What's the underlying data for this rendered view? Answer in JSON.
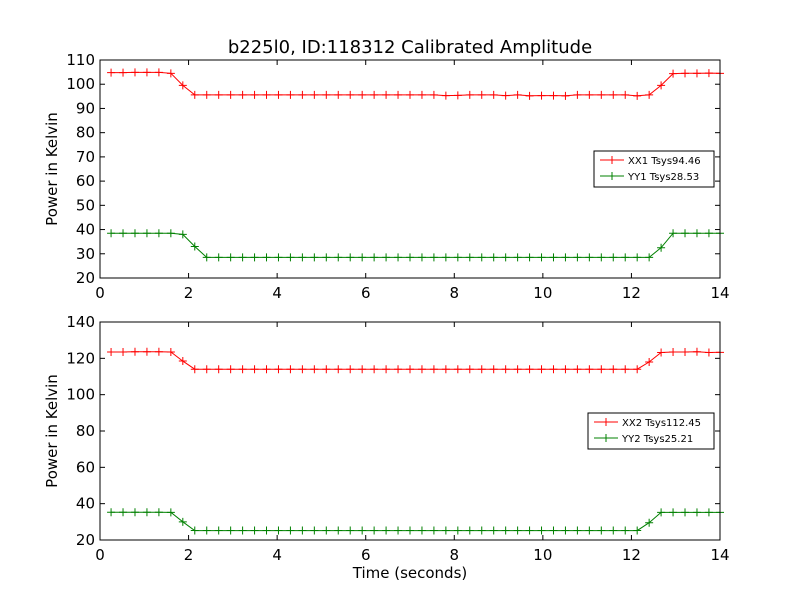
{
  "figure": {
    "title": "b225l0, ID:118312 Calibrated Amplitude",
    "xlabel": "Time (seconds)"
  },
  "chart_data": [
    {
      "type": "line",
      "title": "b225l0, ID:118312 Calibrated Amplitude",
      "xlabel": "",
      "ylabel": "Power in Kelvin",
      "xlim": [
        0,
        14
      ],
      "ylim": [
        20,
        110
      ],
      "xticks": [
        0,
        2,
        4,
        6,
        8,
        10,
        12,
        14
      ],
      "yticks": [
        20,
        30,
        40,
        50,
        60,
        70,
        80,
        90,
        100,
        110
      ],
      "legend_position": "center-right",
      "grid": false,
      "x": [
        0.25,
        0.52,
        0.79,
        1.06,
        1.33,
        1.6,
        1.87,
        2.14,
        2.41,
        2.68,
        2.95,
        3.22,
        3.49,
        3.76,
        4.03,
        4.3,
        4.57,
        4.84,
        5.11,
        5.38,
        5.65,
        5.92,
        6.19,
        6.46,
        6.73,
        7.0,
        7.27,
        7.54,
        7.81,
        8.08,
        8.35,
        8.62,
        8.89,
        9.16,
        9.43,
        9.7,
        9.97,
        10.24,
        10.51,
        10.78,
        11.05,
        11.32,
        11.59,
        11.86,
        12.13,
        12.4,
        12.67,
        12.94,
        13.21,
        13.48,
        13.75,
        14.0
      ],
      "series": [
        {
          "name": "XX1 Tsys94.46",
          "color": "#ff0000",
          "values": [
            104.8,
            104.8,
            104.9,
            104.9,
            104.9,
            104.5,
            99.5,
            95.6,
            95.6,
            95.6,
            95.6,
            95.6,
            95.6,
            95.6,
            95.6,
            95.6,
            95.6,
            95.6,
            95.6,
            95.6,
            95.6,
            95.6,
            95.6,
            95.6,
            95.6,
            95.6,
            95.6,
            95.6,
            95.3,
            95.4,
            95.6,
            95.6,
            95.6,
            95.3,
            95.6,
            95.2,
            95.3,
            95.3,
            95.2,
            95.6,
            95.6,
            95.6,
            95.6,
            95.6,
            95.2,
            95.6,
            99.5,
            104.4,
            104.5,
            104.5,
            104.6,
            104.5
          ]
        },
        {
          "name": "YY1 Tsys28.53",
          "color": "#008000",
          "values": [
            38.5,
            38.5,
            38.5,
            38.5,
            38.5,
            38.5,
            38.0,
            33.0,
            28.5,
            28.5,
            28.5,
            28.5,
            28.5,
            28.5,
            28.5,
            28.5,
            28.5,
            28.5,
            28.5,
            28.5,
            28.5,
            28.5,
            28.5,
            28.5,
            28.5,
            28.5,
            28.5,
            28.5,
            28.5,
            28.5,
            28.5,
            28.5,
            28.5,
            28.5,
            28.5,
            28.5,
            28.5,
            28.5,
            28.5,
            28.5,
            28.5,
            28.5,
            28.5,
            28.5,
            28.5,
            28.5,
            32.5,
            38.5,
            38.5,
            38.5,
            38.5,
            38.5
          ]
        }
      ]
    },
    {
      "type": "line",
      "title": "",
      "xlabel": "Time (seconds)",
      "ylabel": "Power in Kelvin",
      "xlim": [
        0,
        14
      ],
      "ylim": [
        20,
        140
      ],
      "xticks": [
        0,
        2,
        4,
        6,
        8,
        10,
        12,
        14
      ],
      "yticks": [
        20,
        40,
        60,
        80,
        100,
        120,
        140
      ],
      "legend_position": "center-right",
      "grid": false,
      "x": [
        0.25,
        0.52,
        0.79,
        1.06,
        1.33,
        1.6,
        1.87,
        2.14,
        2.41,
        2.68,
        2.95,
        3.22,
        3.49,
        3.76,
        4.03,
        4.3,
        4.57,
        4.84,
        5.11,
        5.38,
        5.65,
        5.92,
        6.19,
        6.46,
        6.73,
        7.0,
        7.27,
        7.54,
        7.81,
        8.08,
        8.35,
        8.62,
        8.89,
        9.16,
        9.43,
        9.7,
        9.97,
        10.24,
        10.51,
        10.78,
        11.05,
        11.32,
        11.59,
        11.86,
        12.13,
        12.4,
        12.67,
        12.94,
        13.21,
        13.48,
        13.75,
        14.0
      ],
      "series": [
        {
          "name": "XX2 Tsys112.45",
          "color": "#ff0000",
          "values": [
            123.5,
            123.5,
            123.6,
            123.6,
            123.6,
            123.5,
            118.5,
            114.0,
            114.0,
            114.0,
            114.0,
            114.0,
            114.0,
            114.0,
            114.0,
            114.0,
            114.0,
            114.0,
            114.0,
            114.0,
            114.0,
            114.0,
            114.0,
            114.0,
            114.0,
            114.0,
            114.0,
            114.0,
            114.0,
            114.0,
            114.0,
            114.0,
            114.0,
            114.0,
            114.0,
            114.0,
            114.0,
            114.0,
            114.0,
            114.0,
            114.0,
            114.0,
            114.0,
            114.0,
            114.0,
            118.0,
            123.2,
            123.5,
            123.5,
            123.6,
            123.2,
            123.3
          ]
        },
        {
          "name": "YY2 Tsys25.21",
          "color": "#008000",
          "values": [
            35.3,
            35.3,
            35.3,
            35.3,
            35.3,
            35.2,
            30.0,
            25.2,
            25.2,
            25.2,
            25.2,
            25.2,
            25.2,
            25.2,
            25.2,
            25.2,
            25.2,
            25.2,
            25.2,
            25.2,
            25.2,
            25.2,
            25.2,
            25.2,
            25.2,
            25.2,
            25.2,
            25.2,
            25.2,
            25.2,
            25.2,
            25.2,
            25.2,
            25.2,
            25.2,
            25.2,
            25.2,
            25.2,
            25.2,
            25.2,
            25.2,
            25.2,
            25.2,
            25.2,
            25.2,
            29.5,
            35.2,
            35.2,
            35.2,
            35.2,
            35.2,
            35.2
          ]
        }
      ]
    }
  ]
}
